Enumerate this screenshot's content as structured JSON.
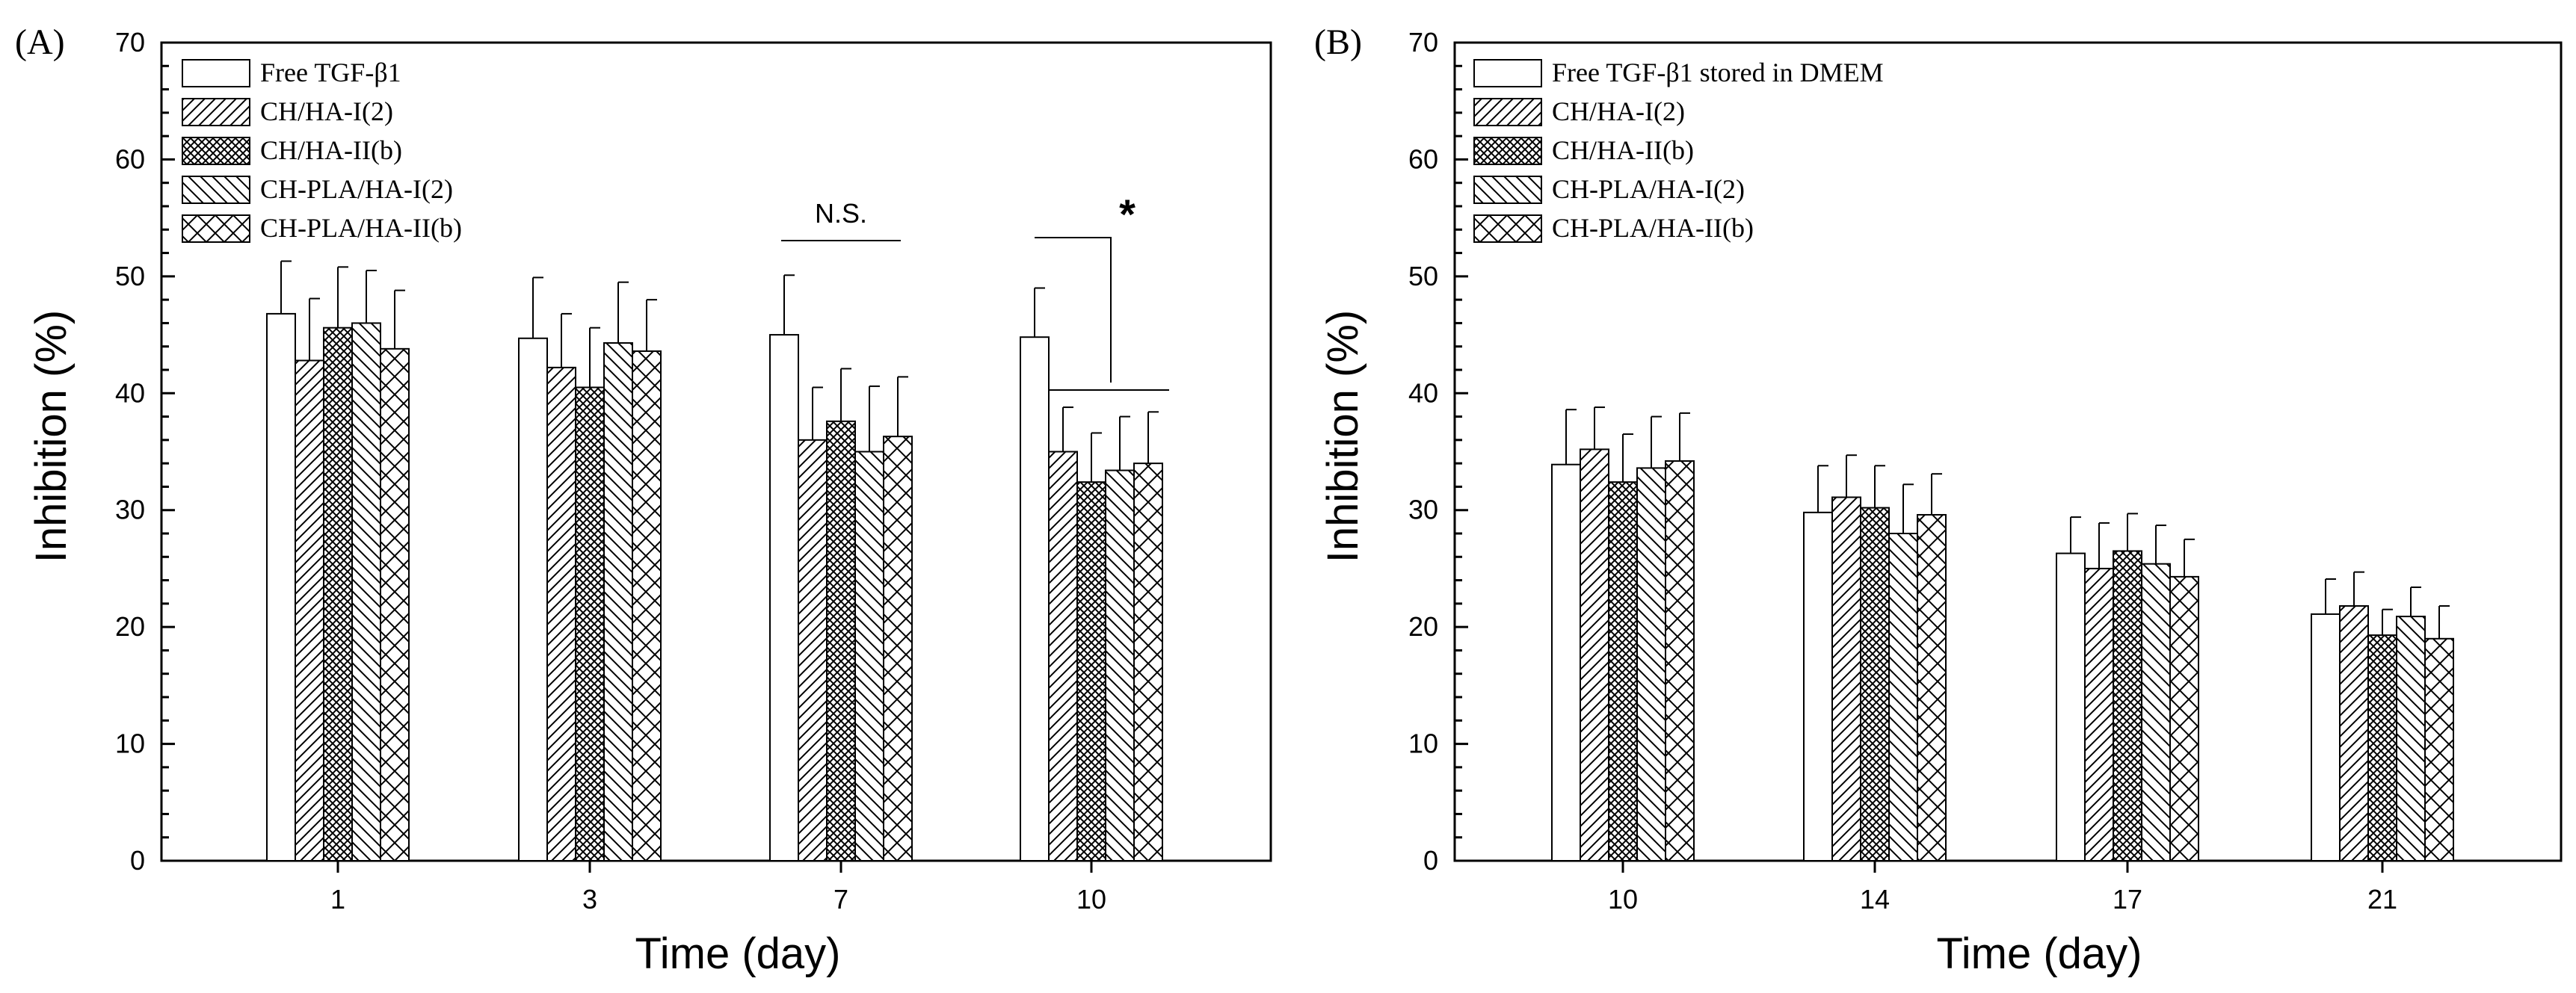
{
  "chart_data": [
    {
      "panel_label": "(A)",
      "type": "bar",
      "xlabel": "Time (day)",
      "ylabel": "Inhibition (%)",
      "ylim": [
        0,
        70
      ],
      "yticks": [
        "0",
        "10",
        "20",
        "30",
        "40",
        "50",
        "60",
        "70"
      ],
      "categories": [
        "1",
        "3",
        "7",
        "10"
      ],
      "legend_position": "top-left",
      "series": [
        {
          "name": "Free TGF-β1",
          "pattern": "none",
          "values": [
            46.8,
            44.7,
            45.0,
            44.8
          ],
          "errors": [
            4.5,
            5.2,
            5.1,
            4.2
          ]
        },
        {
          "name": "CH/HA-I(2)",
          "pattern": "hatch-right",
          "values": [
            42.8,
            42.2,
            36.0,
            35.0
          ],
          "errors": [
            5.3,
            4.6,
            4.5,
            3.8
          ]
        },
        {
          "name": "CH/HA-II(b)",
          "pattern": "crosshatch-dense",
          "values": [
            45.6,
            40.5,
            37.6,
            32.4
          ],
          "errors": [
            5.2,
            5.1,
            4.5,
            4.2
          ]
        },
        {
          "name": "CH-PLA/HA-I(2)",
          "pattern": "hatch-left",
          "values": [
            46.0,
            44.3,
            35.0,
            33.4
          ],
          "errors": [
            4.5,
            5.2,
            5.6,
            4.6
          ]
        },
        {
          "name": "CH-PLA/HA-II(b)",
          "pattern": "crosshatch-wide",
          "values": [
            43.8,
            43.6,
            36.3,
            34.0
          ],
          "errors": [
            5.0,
            4.4,
            5.1,
            4.4
          ]
        }
      ],
      "annotations": [
        {
          "text": "N.S.",
          "category": "7"
        },
        {
          "text": "*",
          "category": "10"
        }
      ]
    },
    {
      "panel_label": "(B)",
      "type": "bar",
      "xlabel": "Time (day)",
      "ylabel": "Inhibition (%)",
      "ylim": [
        0,
        70
      ],
      "yticks": [
        "0",
        "10",
        "20",
        "30",
        "40",
        "50",
        "60",
        "70"
      ],
      "categories": [
        "10",
        "14",
        "17",
        "21"
      ],
      "legend_position": "top-left",
      "series": [
        {
          "name": "Free TGF-β1 stored in DMEM",
          "pattern": "none",
          "values": [
            33.9,
            29.8,
            26.3,
            21.1
          ],
          "errors": [
            4.7,
            4.0,
            3.1,
            3.0
          ]
        },
        {
          "name": "CH/HA-I(2)",
          "pattern": "hatch-right",
          "values": [
            35.2,
            31.1,
            25.0,
            21.8
          ],
          "errors": [
            3.6,
            3.6,
            3.9,
            2.9
          ]
        },
        {
          "name": "CH/HA-II(b)",
          "pattern": "crosshatch-dense",
          "values": [
            32.4,
            30.2,
            26.5,
            19.3
          ],
          "errors": [
            4.1,
            3.6,
            3.2,
            2.2
          ]
        },
        {
          "name": "CH-PLA/HA-I(2)",
          "pattern": "hatch-left",
          "values": [
            33.6,
            28.0,
            25.4,
            20.9
          ],
          "errors": [
            4.4,
            4.2,
            3.3,
            2.5
          ]
        },
        {
          "name": "CH-PLA/HA-II(b)",
          "pattern": "crosshatch-wide",
          "values": [
            34.2,
            29.6,
            24.3,
            19.0
          ],
          "errors": [
            4.1,
            3.5,
            3.2,
            2.8
          ]
        }
      ]
    }
  ]
}
